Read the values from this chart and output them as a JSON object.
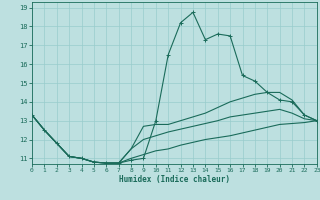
{
  "title": "",
  "xlabel": "Humidex (Indice chaleur)",
  "ylabel": "",
  "xlim": [
    0,
    23
  ],
  "ylim": [
    10.7,
    19.3
  ],
  "xticks": [
    0,
    1,
    2,
    3,
    4,
    5,
    6,
    7,
    8,
    9,
    10,
    11,
    12,
    13,
    14,
    15,
    16,
    17,
    18,
    19,
    20,
    21,
    22,
    23
  ],
  "yticks": [
    11,
    12,
    13,
    14,
    15,
    16,
    17,
    18,
    19
  ],
  "bg_color": "#bde0e0",
  "grid_color": "#99cccc",
  "line_color": "#1a6b5a",
  "series": [
    {
      "x": [
        0,
        1,
        2,
        3,
        4,
        5,
        6,
        7,
        8,
        9,
        10,
        11,
        12,
        13,
        14,
        15,
        16,
        17,
        18,
        19,
        20,
        21,
        22,
        23
      ],
      "y": [
        13.3,
        12.5,
        11.8,
        11.1,
        11.0,
        10.8,
        10.75,
        10.75,
        10.9,
        11.0,
        13.0,
        16.5,
        18.2,
        18.75,
        17.3,
        17.6,
        17.5,
        15.4,
        15.1,
        14.5,
        14.1,
        14.0,
        13.3,
        13.0
      ],
      "marker": "+"
    },
    {
      "x": [
        0,
        1,
        2,
        3,
        4,
        5,
        6,
        7,
        8,
        9,
        10,
        11,
        12,
        13,
        14,
        15,
        16,
        17,
        18,
        19,
        20,
        21,
        22,
        23
      ],
      "y": [
        13.3,
        12.5,
        11.8,
        11.1,
        11.0,
        10.8,
        10.75,
        10.75,
        11.5,
        12.7,
        12.8,
        12.8,
        13.0,
        13.2,
        13.4,
        13.7,
        14.0,
        14.2,
        14.4,
        14.5,
        14.5,
        14.1,
        13.3,
        13.0
      ],
      "marker": null
    },
    {
      "x": [
        0,
        1,
        2,
        3,
        4,
        5,
        6,
        7,
        8,
        9,
        10,
        11,
        12,
        13,
        14,
        15,
        16,
        17,
        18,
        19,
        20,
        21,
        22,
        23
      ],
      "y": [
        13.3,
        12.5,
        11.8,
        11.1,
        11.0,
        10.8,
        10.75,
        10.75,
        11.5,
        12.0,
        12.2,
        12.4,
        12.55,
        12.7,
        12.85,
        13.0,
        13.2,
        13.3,
        13.4,
        13.5,
        13.6,
        13.4,
        13.1,
        13.0
      ],
      "marker": null
    },
    {
      "x": [
        0,
        1,
        2,
        3,
        4,
        5,
        6,
        7,
        8,
        9,
        10,
        11,
        12,
        13,
        14,
        15,
        16,
        17,
        18,
        19,
        20,
        21,
        22,
        23
      ],
      "y": [
        13.3,
        12.5,
        11.8,
        11.1,
        11.0,
        10.8,
        10.75,
        10.75,
        11.0,
        11.2,
        11.4,
        11.5,
        11.7,
        11.85,
        12.0,
        12.1,
        12.2,
        12.35,
        12.5,
        12.65,
        12.8,
        12.85,
        12.9,
        13.0
      ],
      "marker": null
    }
  ]
}
